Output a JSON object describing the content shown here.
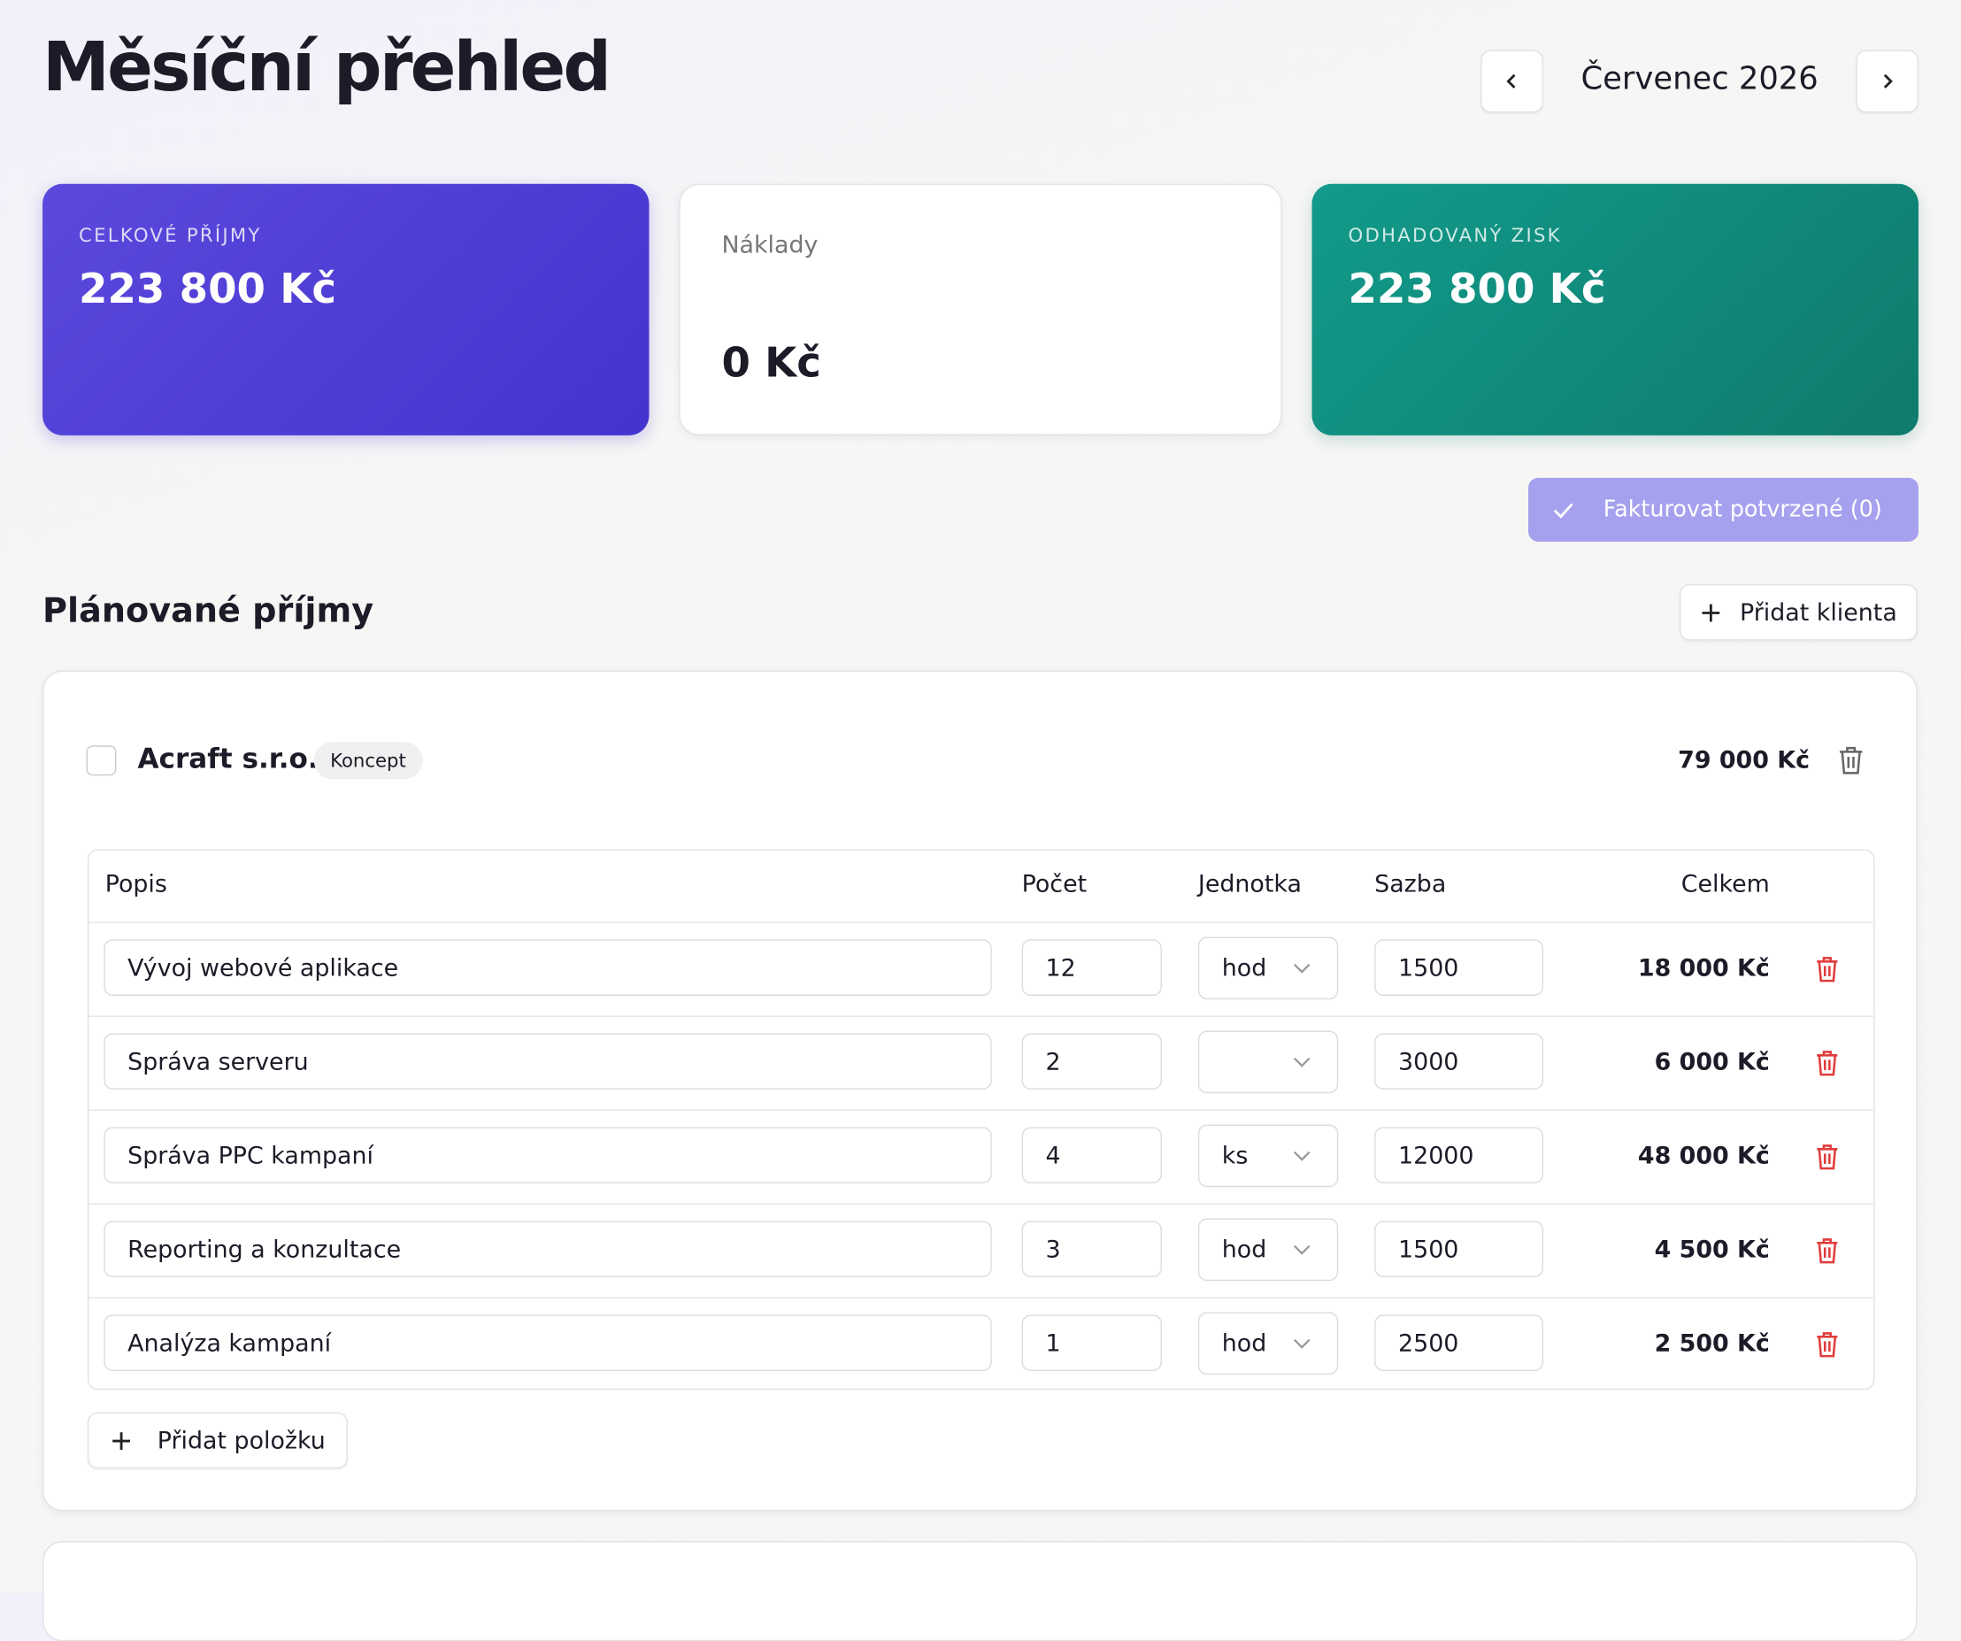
{
  "header": {
    "title": "Měsíční přehled",
    "month": "Červenec 2026"
  },
  "cards": [
    {
      "label": "CELKOVÉ PŘÍJMY",
      "value": "223 800 Kč"
    },
    {
      "label": "Náklady",
      "value": "0 Kč"
    },
    {
      "label": "ODHADOVANÝ ZISK",
      "value": "223 800 Kč"
    }
  ],
  "invoice_button": "Fakturovat potvrzené (0)",
  "section": {
    "title": "Plánované příjmy",
    "add_client": "Přidat klienta"
  },
  "client": {
    "name": "Acraft s.r.o.",
    "status": "Koncept",
    "total": "79 000 Kč",
    "table": {
      "headers": [
        "Popis",
        "Počet",
        "Jednotka",
        "Sazba",
        "Celkem"
      ],
      "rows": [
        [
          "Vývoj webové aplikace",
          "12",
          "hod",
          "1500",
          "18 000 Kč"
        ],
        [
          "Správa serveru",
          "2",
          null,
          "3000",
          "6 000 Kč"
        ],
        [
          "Správa PPC kampaní",
          "4",
          "ks",
          "12000",
          "48 000 Kč"
        ],
        [
          "Reporting a konzultace",
          "3",
          "hod",
          "1500",
          "4 500 Kč"
        ],
        [
          "Analýza kampaní",
          "1",
          "hod",
          "2500",
          "2 500 Kč"
        ]
      ]
    },
    "add_item": "Přidat položku"
  }
}
